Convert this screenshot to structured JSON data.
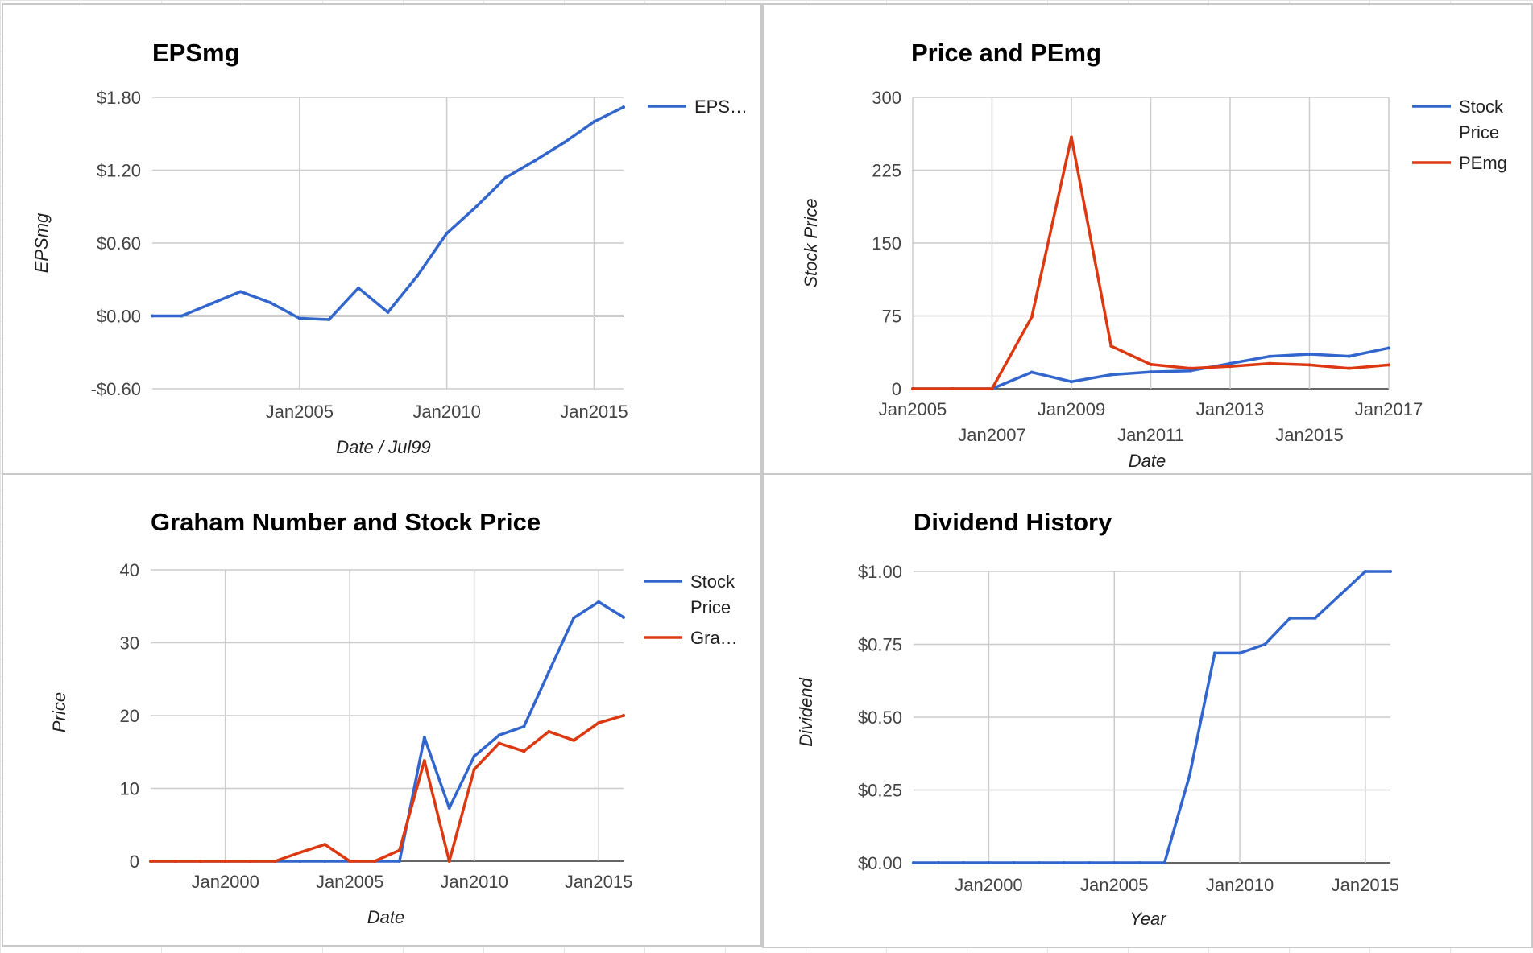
{
  "chart_data": [
    {
      "id": "eps",
      "type": "line",
      "title": "EPSmg",
      "xlabel": "Date / Jul99",
      "ylabel": "EPSmg",
      "ylim": [
        -0.6,
        1.8
      ],
      "xlim": [
        1999.5,
        2015.5
      ],
      "grid": true,
      "legend": "right",
      "y_ticks": [
        {
          "value": 1.8,
          "label": "$1.80"
        },
        {
          "value": 1.2,
          "label": "$1.20"
        },
        {
          "value": 0.6,
          "label": "$0.60"
        },
        {
          "value": 0.0,
          "label": "$0.00"
        },
        {
          "value": -0.6,
          "label": "-$0.60"
        }
      ],
      "x_ticks": [
        {
          "value": 2004.5,
          "label": "Jan2005",
          "row": 0
        },
        {
          "value": 2009.5,
          "label": "Jan2010",
          "row": 0
        },
        {
          "value": 2014.5,
          "label": "Jan2015",
          "row": 0
        }
      ],
      "series": [
        {
          "name": "EPS…",
          "color": "#3366cc",
          "x": [
            1999.5,
            2000.5,
            2001.5,
            2002.5,
            2003.5,
            2004.5,
            2005.5,
            2006.5,
            2007.5,
            2008.5,
            2009.5,
            2010.5,
            2011.5,
            2012.5,
            2013.5,
            2014.5,
            2015.5
          ],
          "values": [
            0.0,
            0.0,
            0.1,
            0.2,
            0.11,
            -0.02,
            -0.03,
            0.23,
            0.03,
            0.33,
            0.68,
            0.9,
            1.14,
            1.28,
            1.43,
            1.6,
            1.72
          ]
        }
      ]
    },
    {
      "id": "price_pe",
      "type": "line",
      "title": "Price and PEmg",
      "xlabel": "Date",
      "ylabel": "Stock Price",
      "ylim": [
        0,
        300
      ],
      "xlim": [
        2005,
        2017
      ],
      "grid": true,
      "legend": "right",
      "y_ticks": [
        {
          "value": 300,
          "label": "300"
        },
        {
          "value": 225,
          "label": "225"
        },
        {
          "value": 150,
          "label": "150"
        },
        {
          "value": 75,
          "label": "75"
        },
        {
          "value": 0,
          "label": "0"
        }
      ],
      "x_ticks": [
        {
          "value": 2005,
          "label": "Jan2005",
          "row": 0
        },
        {
          "value": 2007,
          "label": "Jan2007",
          "row": 1
        },
        {
          "value": 2009,
          "label": "Jan2009",
          "row": 0
        },
        {
          "value": 2011,
          "label": "Jan2011",
          "row": 1
        },
        {
          "value": 2013,
          "label": "Jan2013",
          "row": 0
        },
        {
          "value": 2015,
          "label": "Jan2015",
          "row": 1
        },
        {
          "value": 2017,
          "label": "Jan2017",
          "row": 0
        }
      ],
      "series": [
        {
          "name": "Stock Price",
          "color": "#3366cc",
          "x": [
            2005,
            2006,
            2007,
            2008,
            2009,
            2010,
            2011,
            2012,
            2013,
            2014,
            2015,
            2016,
            2017
          ],
          "values": [
            0,
            0,
            0,
            17,
            7.3,
            14.4,
            17.3,
            18.5,
            26,
            33.4,
            35.6,
            33.5,
            42
          ]
        },
        {
          "name": "PEmg",
          "color": "#dc3912",
          "x": [
            2005,
            2006,
            2007,
            2008,
            2009,
            2010,
            2011,
            2012,
            2013,
            2014,
            2015,
            2016,
            2017
          ],
          "values": [
            0,
            0,
            0,
            74,
            259,
            44,
            25,
            21,
            23,
            26,
            24.5,
            21,
            24.5
          ]
        }
      ]
    },
    {
      "id": "graham",
      "type": "line",
      "title": "Graham Number and Stock Price",
      "xlabel": "Date",
      "ylabel": "Price",
      "ylim": [
        0,
        40
      ],
      "xlim": [
        1997,
        2016
      ],
      "grid": true,
      "legend": "right",
      "y_ticks": [
        {
          "value": 40,
          "label": "40"
        },
        {
          "value": 30,
          "label": "30"
        },
        {
          "value": 20,
          "label": "20"
        },
        {
          "value": 10,
          "label": "10"
        },
        {
          "value": 0,
          "label": "0"
        }
      ],
      "x_ticks": [
        {
          "value": 2000,
          "label": "Jan2000",
          "row": 0
        },
        {
          "value": 2005,
          "label": "Jan2005",
          "row": 0
        },
        {
          "value": 2010,
          "label": "Jan2010",
          "row": 0
        },
        {
          "value": 2015,
          "label": "Jan2015",
          "row": 0
        }
      ],
      "series": [
        {
          "name": "Stock Price",
          "color": "#3366cc",
          "x": [
            1997,
            1998,
            1999,
            2000,
            2001,
            2002,
            2003,
            2004,
            2005,
            2006,
            2007,
            2008,
            2009,
            2010,
            2011,
            2012,
            2013,
            2014,
            2015,
            2016
          ],
          "values": [
            0,
            0,
            0,
            0,
            0,
            0,
            0,
            0,
            0,
            0,
            0,
            17,
            7.3,
            14.4,
            17.3,
            18.5,
            26,
            33.4,
            35.6,
            33.5
          ]
        },
        {
          "name": "Gra…",
          "color": "#dc3912",
          "x": [
            1997,
            1998,
            1999,
            2000,
            2001,
            2002,
            2003,
            2004,
            2005,
            2006,
            2007,
            2008,
            2009,
            2010,
            2011,
            2012,
            2013,
            2014,
            2015,
            2016
          ],
          "values": [
            0,
            0,
            0,
            0,
            0,
            0,
            1.2,
            2.3,
            0,
            0,
            1.5,
            13.8,
            0,
            12.6,
            16.2,
            15.1,
            17.8,
            16.6,
            19.0,
            20.0
          ]
        }
      ]
    },
    {
      "id": "dividend",
      "type": "line",
      "title": "Dividend History",
      "xlabel": "Year",
      "ylabel": "Dividend",
      "ylim": [
        0,
        1.0
      ],
      "xlim": [
        1997,
        2016
      ],
      "grid": true,
      "legend": "none",
      "y_ticks": [
        {
          "value": 1.0,
          "label": "$1.00"
        },
        {
          "value": 0.75,
          "label": "$0.75"
        },
        {
          "value": 0.5,
          "label": "$0.50"
        },
        {
          "value": 0.25,
          "label": "$0.25"
        },
        {
          "value": 0.0,
          "label": "$0.00"
        }
      ],
      "x_ticks": [
        {
          "value": 2000,
          "label": "Jan2000",
          "row": 0
        },
        {
          "value": 2005,
          "label": "Jan2005",
          "row": 0
        },
        {
          "value": 2010,
          "label": "Jan2010",
          "row": 0
        },
        {
          "value": 2015,
          "label": "Jan2015",
          "row": 0
        }
      ],
      "series": [
        {
          "name": "Dividend",
          "color": "#3366cc",
          "x": [
            1997,
            1998,
            1999,
            2000,
            2001,
            2002,
            2003,
            2004,
            2005,
            2006,
            2007,
            2008,
            2009,
            2010,
            2011,
            2012,
            2013,
            2014,
            2015,
            2016
          ],
          "values": [
            0,
            0,
            0,
            0,
            0,
            0,
            0,
            0,
            0,
            0,
            0,
            0.3,
            0.72,
            0.72,
            0.75,
            0.84,
            0.84,
            0.92,
            1.0,
            1.0
          ]
        }
      ]
    }
  ]
}
